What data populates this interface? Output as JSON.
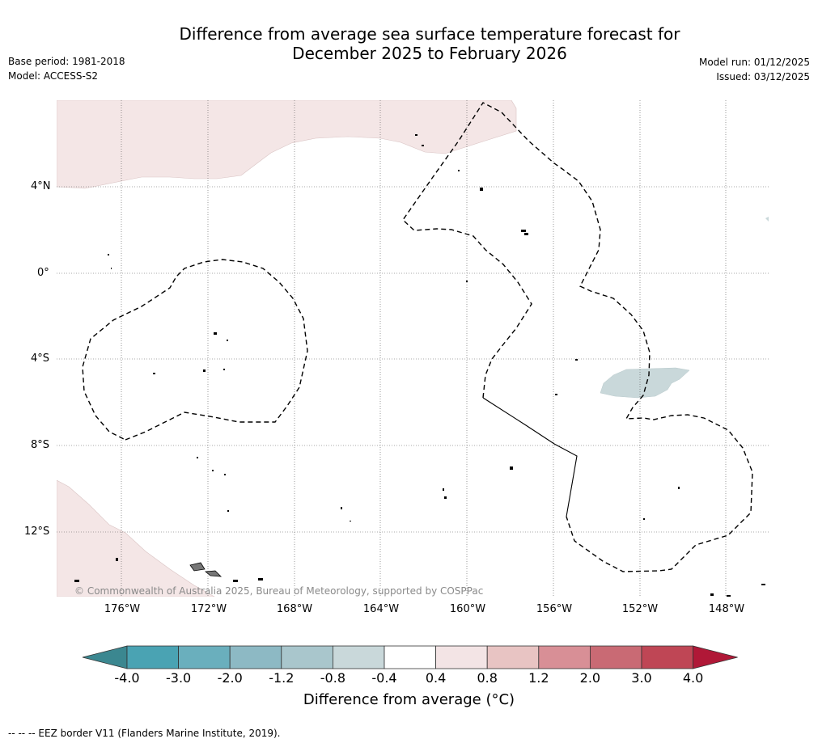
{
  "title_line1": "Difference from average sea surface temperature forecast for",
  "title_line2": "December 2025 to February 2026",
  "base_period": "Base period: 1981-2018",
  "model": "Model: ACCESS-S2",
  "model_run": "Model run: 01/12/2025",
  "issued": "Issued: 03/12/2025",
  "lat_labels": [
    "4°N",
    "0°",
    "4°S",
    "8°S",
    "12°S"
  ],
  "lon_labels": [
    "176°W",
    "172°W",
    "168°W",
    "164°W",
    "160°W",
    "156°W",
    "152°W",
    "148°W"
  ],
  "copyright": "© Commonwealth of Australia 2025, Bureau of Meteorology, supported by COSPPac",
  "colorbar": {
    "ticks": [
      "-4.0",
      "-3.0",
      "-2.0",
      "-1.2",
      "-0.8",
      "-0.4",
      "0.4",
      "0.8",
      "1.2",
      "2.0",
      "3.0",
      "4.0"
    ],
    "colors": [
      "#4aa3b3",
      "#6aafbd",
      "#8db9c4",
      "#a9c6cc",
      "#c9d8da",
      "#ffffff",
      "#f3e4e5",
      "#e8c4c3",
      "#d88f96",
      "#c96a74",
      "#bf4655"
    ],
    "low_color": "#3b8790",
    "high_color": "#b01837",
    "title": "Difference from average (°C)"
  },
  "legend_footer": "--  --  -- EEZ border V11 (Flanders Marine Institute, 2019)."
}
